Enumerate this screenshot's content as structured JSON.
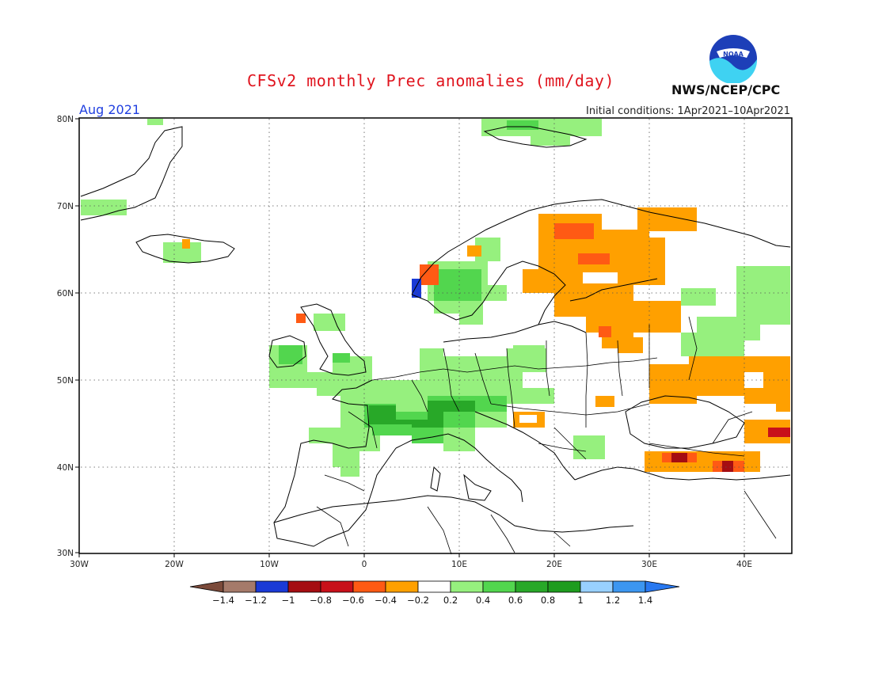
{
  "header": {
    "title": "CFSv2 monthly Prec anomalies (mm/day)",
    "month": "Aug 2021",
    "initial_conditions": "Initial conditions: 1Apr2021–10Apr2021",
    "org": "NWS/NCEP/CPC",
    "logo_text": "NOAA"
  },
  "map": {
    "lon_range": [
      -30,
      45
    ],
    "lat_range": [
      30,
      80
    ],
    "lat_labels": [
      "80N",
      "70N",
      "60N",
      "50N",
      "40N",
      "30N"
    ],
    "lon_labels": [
      "30W",
      "20W",
      "10W",
      "0",
      "10E",
      "20E",
      "30E",
      "40E"
    ],
    "grid": "dotted"
  },
  "colorbar": {
    "labels": [
      "−1.4",
      "−1.2",
      "−1",
      "−0.8",
      "−0.6",
      "−0.4",
      "−0.2",
      "0.2",
      "0.4",
      "0.6",
      "0.8",
      "1",
      "1.2",
      "1.4"
    ],
    "colors": [
      "#7b4a3a",
      "#a57a6a",
      "#1a3ad6",
      "#a50d12",
      "#c8101a",
      "#ff5a14",
      "#ffa000",
      "#ffffff",
      "#96f07e",
      "#52d64e",
      "#28a828",
      "#1e9c1e",
      "#98d0ff",
      "#3c96f0",
      "#2878f0"
    ]
  },
  "anomaly_regions": [
    {
      "name": "greenland-east",
      "color": "#96f07e"
    },
    {
      "name": "iceland",
      "color": "#96f07e"
    },
    {
      "name": "svalbard",
      "color": "#96f07e"
    },
    {
      "name": "norway-coast",
      "color": "#96f07e"
    },
    {
      "name": "western-europe",
      "color": "#96f07e"
    },
    {
      "name": "france",
      "color": "#28a828"
    },
    {
      "name": "alps",
      "color": "#28a828"
    },
    {
      "name": "finland",
      "color": "#ffa000"
    },
    {
      "name": "russia-west",
      "color": "#ffa000"
    },
    {
      "name": "ukraine",
      "color": "#ffa000"
    },
    {
      "name": "turkey",
      "color": "#ffa000"
    }
  ]
}
